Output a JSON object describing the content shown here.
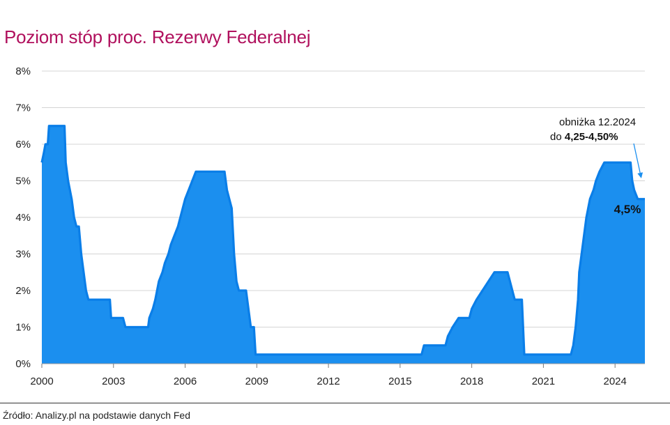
{
  "chart_data": {
    "type": "area",
    "title": "Poziom stóp proc. Rezerwy Federalnej",
    "xlabel": "",
    "ylabel": "",
    "ylim": [
      0,
      8
    ],
    "xlim": [
      2000,
      2025.25
    ],
    "grid": true,
    "y_ticks": [
      0,
      1,
      2,
      3,
      4,
      5,
      6,
      7,
      8
    ],
    "y_tick_labels": [
      "0%",
      "1%",
      "2%",
      "3%",
      "4%",
      "5%",
      "6%",
      "7%",
      "8%"
    ],
    "x_ticks": [
      2000,
      2003,
      2006,
      2009,
      2012,
      2015,
      2018,
      2021,
      2024
    ],
    "x_tick_labels": [
      "2000",
      "2003",
      "2006",
      "2009",
      "2012",
      "2015",
      "2018",
      "2021",
      "2024"
    ],
    "series": [
      {
        "color": "#1b8fef",
        "points": [
          [
            2000.0,
            5.5
          ],
          [
            2000.08,
            5.75
          ],
          [
            2000.15,
            6.0
          ],
          [
            2000.25,
            6.0
          ],
          [
            2000.3,
            6.5
          ],
          [
            2000.95,
            6.5
          ],
          [
            2001.0,
            5.5
          ],
          [
            2001.1,
            5.0
          ],
          [
            2001.25,
            4.5
          ],
          [
            2001.35,
            4.0
          ],
          [
            2001.45,
            3.75
          ],
          [
            2001.55,
            3.75
          ],
          [
            2001.65,
            3.0
          ],
          [
            2001.75,
            2.5
          ],
          [
            2001.85,
            2.0
          ],
          [
            2001.95,
            1.75
          ],
          [
            2002.85,
            1.75
          ],
          [
            2002.9,
            1.25
          ],
          [
            2003.4,
            1.25
          ],
          [
            2003.5,
            1.0
          ],
          [
            2004.45,
            1.0
          ],
          [
            2004.5,
            1.25
          ],
          [
            2004.65,
            1.5
          ],
          [
            2004.75,
            1.75
          ],
          [
            2004.9,
            2.25
          ],
          [
            2005.05,
            2.5
          ],
          [
            2005.15,
            2.75
          ],
          [
            2005.3,
            3.0
          ],
          [
            2005.4,
            3.25
          ],
          [
            2005.55,
            3.5
          ],
          [
            2005.7,
            3.75
          ],
          [
            2005.8,
            4.0
          ],
          [
            2006.0,
            4.5
          ],
          [
            2006.15,
            4.75
          ],
          [
            2006.3,
            5.0
          ],
          [
            2006.45,
            5.25
          ],
          [
            2007.65,
            5.25
          ],
          [
            2007.75,
            4.75
          ],
          [
            2007.85,
            4.5
          ],
          [
            2007.95,
            4.25
          ],
          [
            2008.05,
            3.0
          ],
          [
            2008.15,
            2.25
          ],
          [
            2008.25,
            2.0
          ],
          [
            2008.55,
            2.0
          ],
          [
            2008.75,
            1.0
          ],
          [
            2008.88,
            1.0
          ],
          [
            2008.95,
            0.25
          ],
          [
            2015.9,
            0.25
          ],
          [
            2016.0,
            0.5
          ],
          [
            2016.9,
            0.5
          ],
          [
            2017.0,
            0.75
          ],
          [
            2017.2,
            1.0
          ],
          [
            2017.45,
            1.25
          ],
          [
            2017.9,
            1.25
          ],
          [
            2018.0,
            1.5
          ],
          [
            2018.2,
            1.75
          ],
          [
            2018.45,
            2.0
          ],
          [
            2018.7,
            2.25
          ],
          [
            2018.95,
            2.5
          ],
          [
            2019.5,
            2.5
          ],
          [
            2019.6,
            2.25
          ],
          [
            2019.7,
            2.0
          ],
          [
            2019.8,
            1.75
          ],
          [
            2020.1,
            1.75
          ],
          [
            2020.2,
            0.25
          ],
          [
            2022.15,
            0.25
          ],
          [
            2022.25,
            0.5
          ],
          [
            2022.35,
            1.0
          ],
          [
            2022.45,
            1.75
          ],
          [
            2022.5,
            2.5
          ],
          [
            2022.65,
            3.25
          ],
          [
            2022.8,
            4.0
          ],
          [
            2022.95,
            4.5
          ],
          [
            2023.1,
            4.75
          ],
          [
            2023.2,
            5.0
          ],
          [
            2023.35,
            5.25
          ],
          [
            2023.55,
            5.5
          ],
          [
            2024.65,
            5.5
          ],
          [
            2024.72,
            5.0
          ],
          [
            2024.8,
            4.75
          ],
          [
            2024.95,
            4.5
          ],
          [
            2025.25,
            4.5
          ]
        ]
      }
    ],
    "annotation": {
      "line1": "obniżka 12.2024",
      "line2_prefix": "do ",
      "line2_bold": "4,25-4,50%"
    },
    "last_value_label": "4,5%"
  },
  "source_text": "Źródło: Analizy.pl na podstawie danych Fed"
}
